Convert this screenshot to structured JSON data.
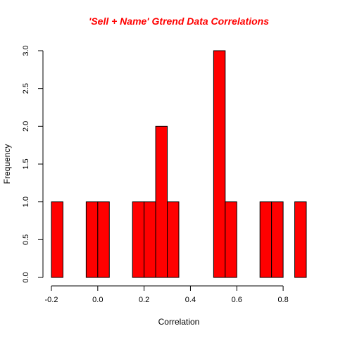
{
  "chart_data": {
    "type": "bar",
    "title": "'Sell + Name' Gtrend Data Correlations",
    "xlabel": "Correlation",
    "ylabel": "Frequency",
    "bin_width": 0.05,
    "bins": [
      {
        "start": -0.2,
        "end": -0.15,
        "count": 1
      },
      {
        "start": -0.05,
        "end": 0.0,
        "count": 1
      },
      {
        "start": 0.0,
        "end": 0.05,
        "count": 1
      },
      {
        "start": 0.15,
        "end": 0.2,
        "count": 1
      },
      {
        "start": 0.2,
        "end": 0.25,
        "count": 1
      },
      {
        "start": 0.25,
        "end": 0.3,
        "count": 2
      },
      {
        "start": 0.3,
        "end": 0.35,
        "count": 1
      },
      {
        "start": 0.5,
        "end": 0.55,
        "count": 3
      },
      {
        "start": 0.55,
        "end": 0.6,
        "count": 1
      },
      {
        "start": 0.7,
        "end": 0.75,
        "count": 1
      },
      {
        "start": 0.75,
        "end": 0.8,
        "count": 1
      },
      {
        "start": 0.85,
        "end": 0.9,
        "count": 1
      }
    ],
    "xlim": [
      -0.2,
      0.9
    ],
    "ylim": [
      0,
      3
    ],
    "x_ticks": [
      -0.2,
      0.0,
      0.2,
      0.4,
      0.6,
      0.8
    ],
    "x_tick_labels": [
      "-0.2",
      "0.0",
      "0.2",
      "0.4",
      "0.6",
      "0.8"
    ],
    "y_ticks": [
      0,
      0.5,
      1,
      1.5,
      2,
      2.5,
      3
    ],
    "y_tick_labels": [
      "0.0",
      "0.5",
      "1.0",
      "1.5",
      "2.0",
      "2.5",
      "3.0"
    ],
    "bar_color": "#ff0000",
    "title_color": "#ff0000",
    "grid": false,
    "legend": "none"
  }
}
